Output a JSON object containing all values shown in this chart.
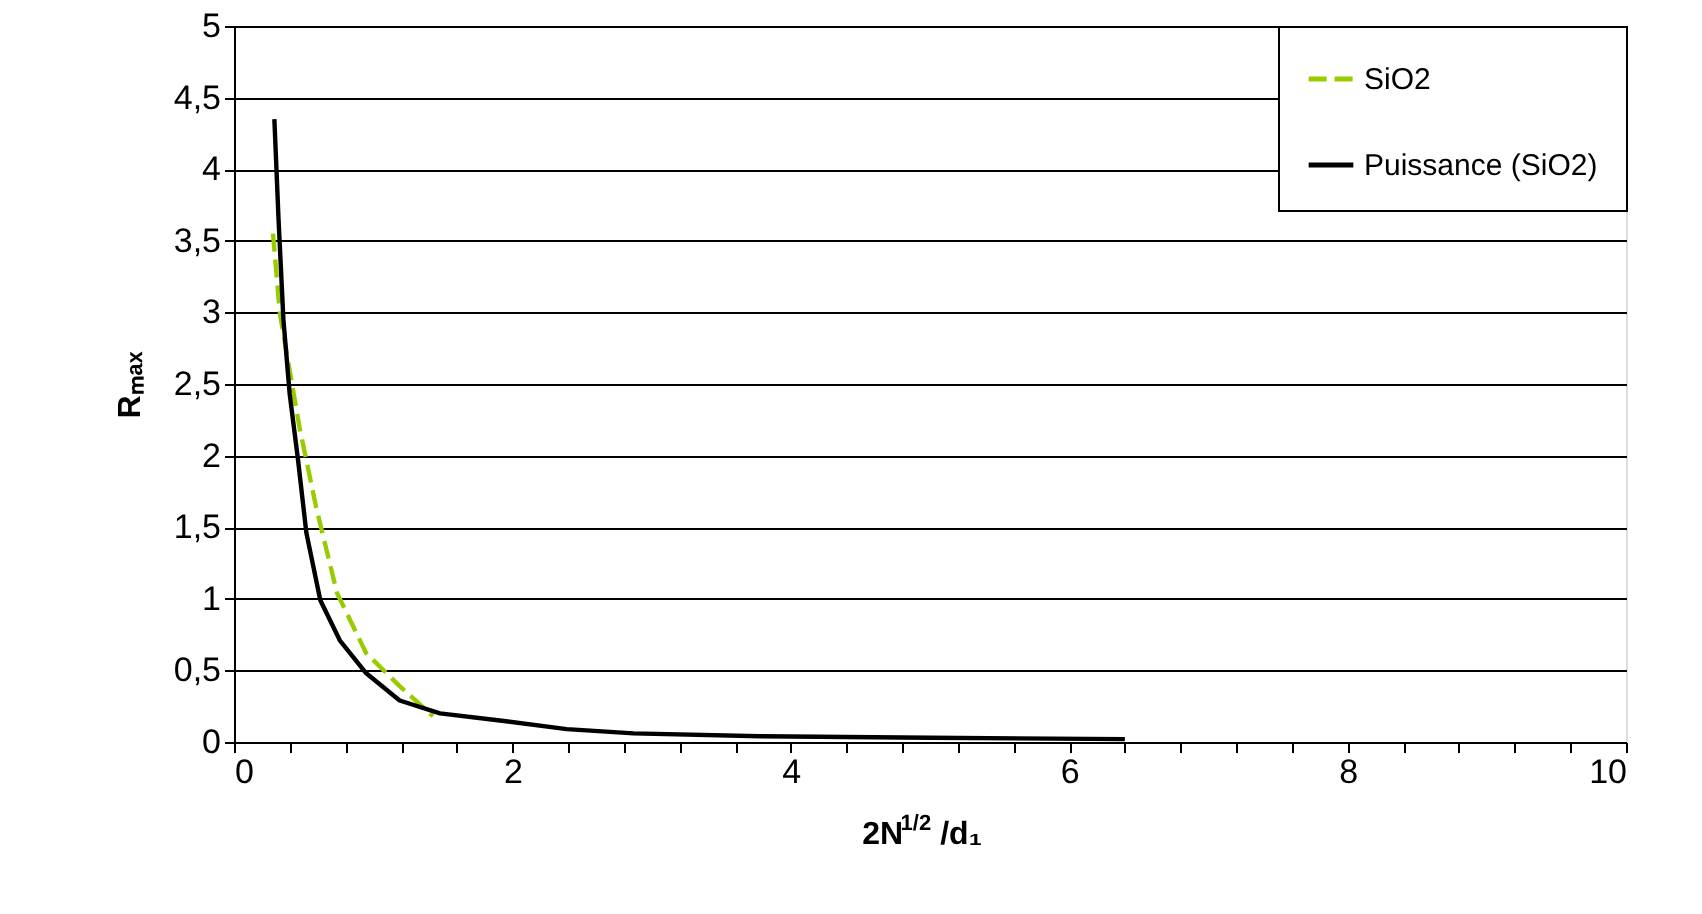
{
  "chart_data": {
    "type": "line",
    "xlabel": "2N$^{1/2}$/d₁",
    "ylabel": "Rₘₐₓ",
    "xlim": [
      0,
      10
    ],
    "ylim": [
      0,
      5
    ],
    "xticks": [
      0,
      {
        "value": 0.4,
        "label": null
      },
      {
        "value": 0.8,
        "label": null
      },
      {
        "value": 1.2,
        "label": null
      },
      {
        "value": 1.6,
        "label": null
      },
      2,
      {
        "value": 2.4,
        "label": null
      },
      {
        "value": 2.8,
        "label": null
      },
      {
        "value": 3.2,
        "label": null
      },
      {
        "value": 3.6,
        "label": null
      },
      4,
      {
        "value": 4.4,
        "label": null
      },
      {
        "value": 4.8,
        "label": null
      },
      {
        "value": 5.2,
        "label": null
      },
      {
        "value": 5.6,
        "label": null
      },
      6,
      {
        "value": 6.4,
        "label": null
      },
      {
        "value": 6.8,
        "label": null
      },
      {
        "value": 7.2,
        "label": null
      },
      {
        "value": 7.6,
        "label": null
      },
      8,
      {
        "value": 8.4,
        "label": null
      },
      {
        "value": 8.8,
        "label": null
      },
      {
        "value": 9.2,
        "label": null
      },
      {
        "value": 9.6,
        "label": null
      },
      10
    ],
    "yticks": [
      0,
      {
        "value": 0.5,
        "label": "0,5"
      },
      1,
      {
        "value": 1.5,
        "label": "1,5"
      },
      2,
      {
        "value": 2.5,
        "label": "2,5"
      },
      3,
      {
        "value": 3.5,
        "label": "3,5"
      },
      4,
      {
        "value": 4.5,
        "label": "4,5"
      },
      5
    ],
    "grid": "y",
    "legend": "top right",
    "series": [
      {
        "name": "SiO2",
        "color": "#99cc00",
        "line_style": "dashed",
        "x": [
          0.28,
          0.33,
          0.47,
          0.59,
          0.74,
          0.95,
          1.19,
          1.43
        ],
        "values": [
          3.55,
          2.99,
          2.2,
          1.64,
          1.04,
          0.62,
          0.39,
          0.18
        ]
      },
      {
        "name": "Puissance (SiO2)",
        "color": "#000000",
        "line_style": "solid",
        "x": [
          0.29,
          0.32,
          0.355,
          0.4,
          0.46,
          0.52,
          0.62,
          0.76,
          0.95,
          1.19,
          1.48,
          1.91,
          2.39,
          2.87,
          3.78,
          5.0,
          6.4
        ],
        "values": [
          4.35,
          3.65,
          2.95,
          2.43,
          1.97,
          1.46,
          0.99,
          0.71,
          0.48,
          0.29,
          0.2,
          0.15,
          0.09,
          0.06,
          0.04,
          0.03,
          0.02
        ]
      }
    ]
  }
}
